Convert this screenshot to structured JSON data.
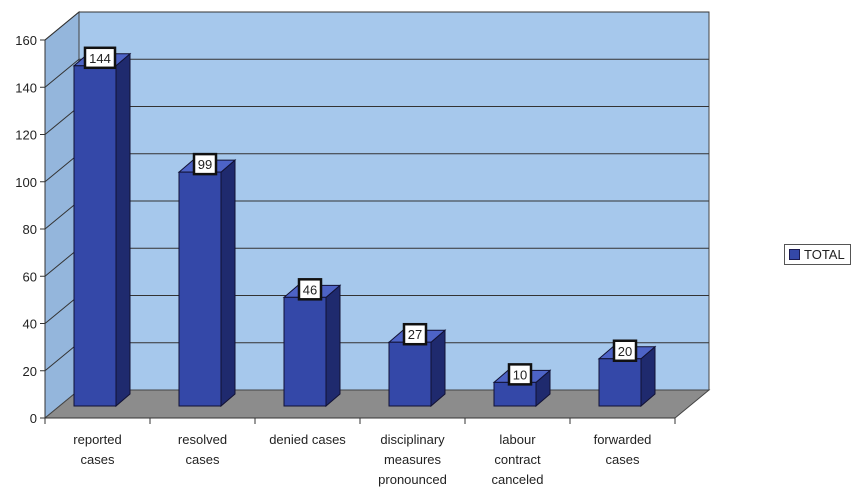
{
  "chart_data": {
    "type": "bar",
    "categories": [
      [
        "reported",
        "cases"
      ],
      [
        "resolved",
        "cases"
      ],
      [
        "denied cases"
      ],
      [
        "disciplinary",
        "measures",
        "pronounced"
      ],
      [
        "labour",
        "contract",
        "canceled"
      ],
      [
        "forwarded",
        "cases"
      ]
    ],
    "series": [
      {
        "name": "TOTAL",
        "values": [
          144,
          99,
          46,
          27,
          10,
          20
        ]
      }
    ],
    "ylim": [
      0,
      160
    ],
    "yticks": [
      0,
      20,
      40,
      60,
      80,
      100,
      120,
      140,
      160
    ],
    "grid": true,
    "legend_position": "right",
    "colors": {
      "bar_front": "#3448a8",
      "bar_side": "#1f2a6e",
      "bar_top": "#4d63c6",
      "wall": "#a6c8ec",
      "floor": "#8c8c8c"
    }
  }
}
